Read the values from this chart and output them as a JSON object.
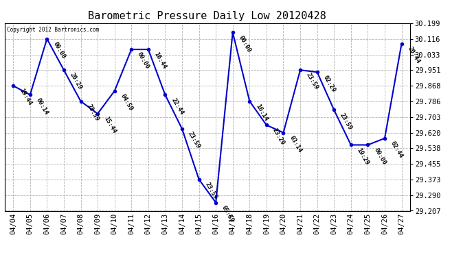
{
  "title": "Barometric Pressure Daily Low 20120428",
  "copyright": "Copyright 2012 Bartronics.com",
  "background_color": "#ffffff",
  "line_color": "#0000cc",
  "marker_color": "#0000cc",
  "grid_color": "#aaaaaa",
  "ylim": [
    29.207,
    30.199
  ],
  "yticks": [
    29.207,
    29.29,
    29.373,
    29.455,
    29.538,
    29.62,
    29.703,
    29.786,
    29.868,
    29.951,
    30.033,
    30.116,
    30.199
  ],
  "dates": [
    "04/04",
    "04/05",
    "04/06",
    "04/07",
    "04/08",
    "04/09",
    "04/10",
    "04/11",
    "04/12",
    "04/13",
    "04/14",
    "04/15",
    "04/16",
    "04/17",
    "04/18",
    "04/19",
    "04/20",
    "04/21",
    "04/22",
    "04/23",
    "04/24",
    "04/25",
    "04/26",
    "04/27"
  ],
  "values": [
    29.868,
    29.82,
    30.116,
    29.951,
    29.786,
    29.72,
    29.84,
    30.06,
    30.06,
    29.82,
    29.64,
    29.373,
    29.25,
    30.15,
    29.786,
    29.66,
    29.62,
    29.951,
    29.94,
    29.74,
    29.555,
    29.555,
    29.59,
    30.09
  ],
  "point_labels": [
    "19:44",
    "00:14",
    "00:00",
    "20:29",
    "23:59",
    "15:44",
    "04:59",
    "00:00",
    "16:44",
    "22:44",
    "23:59",
    "23:59",
    "05:59",
    "00:00",
    "16:14",
    "23:29",
    "03:14",
    "23:59",
    "02:29",
    "23:59",
    "19:29",
    "00:00",
    "02:44",
    "20:44"
  ],
  "title_fontsize": 11,
  "tick_fontsize": 7.5,
  "label_fontsize": 6.5
}
